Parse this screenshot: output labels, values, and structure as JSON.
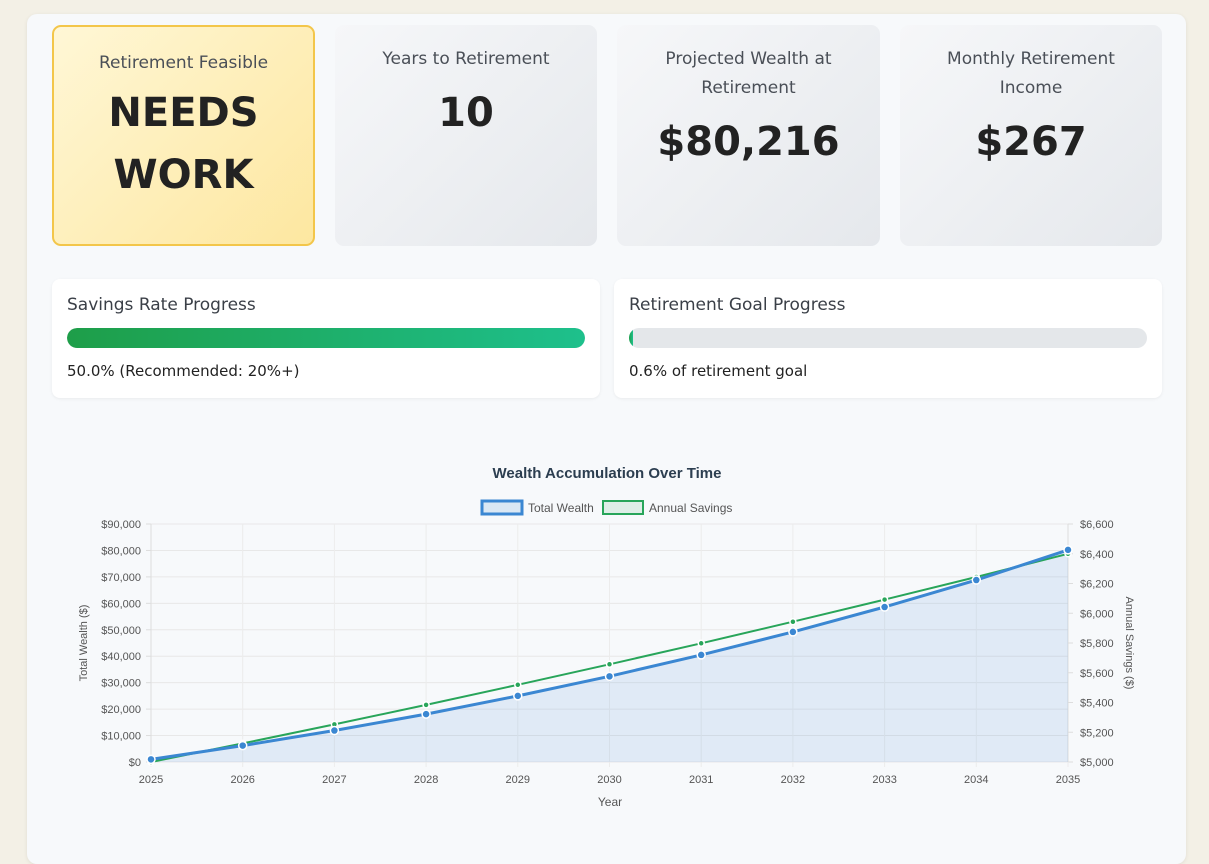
{
  "cards": [
    {
      "label": "Retirement Feasible",
      "value": "NEEDS WORK"
    },
    {
      "label": "Years to Retirement",
      "value": "10"
    },
    {
      "label": "Projected Wealth at Retirement",
      "value": "$80,216"
    },
    {
      "label": "Monthly Retirement Income",
      "value": "$267"
    }
  ],
  "progress": {
    "savings": {
      "title": "Savings Rate Progress",
      "fraction": 1.0,
      "note": "50.0% (Recommended: 20%+)"
    },
    "goal": {
      "title": "Retirement Goal Progress",
      "fraction": 0.006,
      "note": "0.6% of retirement goal"
    }
  },
  "colors": {
    "wealth": "#3b87d2",
    "savings": "#28a55a",
    "warn_border": "#f3c64a"
  },
  "chart_data": {
    "type": "line",
    "title": "Wealth Accumulation Over Time",
    "xlabel": "Year",
    "ylabel_left": "Total Wealth ($)",
    "ylabel_right": "Annual Savings ($)",
    "x": [
      "2025",
      "2026",
      "2027",
      "2028",
      "2029",
      "2030",
      "2031",
      "2032",
      "2033",
      "2034",
      "2035"
    ],
    "series": [
      {
        "name": "Total Wealth",
        "axis": "left",
        "fill": true,
        "values": [
          1000,
          6200,
          11900,
          18100,
          25000,
          32400,
          40500,
          49200,
          58600,
          68800,
          80216
        ]
      },
      {
        "name": "Annual Savings",
        "axis": "right",
        "fill": false,
        "values": [
          5000,
          5125,
          5253,
          5384,
          5519,
          5657,
          5798,
          5943,
          6092,
          6244,
          6400
        ]
      }
    ],
    "ylim_left": [
      0,
      90000
    ],
    "ylim_right": [
      5000,
      6600
    ],
    "yticks_left": [
      "$0",
      "$10,000",
      "$20,000",
      "$30,000",
      "$40,000",
      "$50,000",
      "$60,000",
      "$70,000",
      "$80,000",
      "$90,000"
    ],
    "yticks_right": [
      "$5,000",
      "$5,200",
      "$5,400",
      "$5,600",
      "$5,800",
      "$6,000",
      "$6,200",
      "$6,400",
      "$6,600"
    ],
    "legend": "top",
    "grid": true
  }
}
